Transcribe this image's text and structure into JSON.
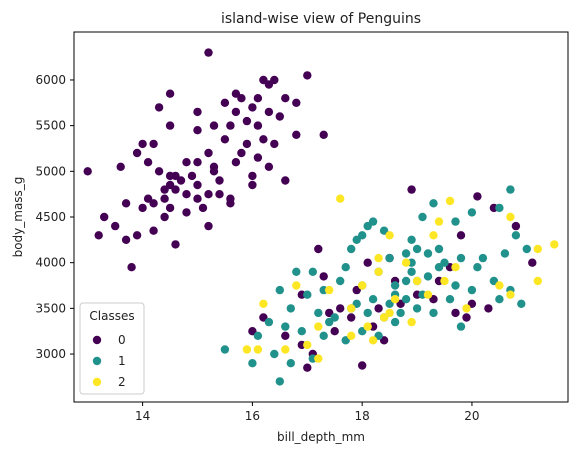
{
  "chart_data": {
    "type": "scatter",
    "title": "island-wise view of Penguins",
    "xlabel": "bill_depth_mm",
    "ylabel": "body_mass_g",
    "xlim": [
      12.75,
      21.75
    ],
    "ylim": [
      2475,
      6525
    ],
    "xticks": [
      14,
      16,
      18,
      20
    ],
    "yticks": [
      3000,
      3500,
      4000,
      4500,
      5000,
      5500,
      6000
    ],
    "grid": false,
    "legend": {
      "title": "Classes",
      "position": "lower-left"
    },
    "series": [
      {
        "name": "0",
        "color": "#440154",
        "points": [
          [
            15.2,
            6300
          ],
          [
            17.0,
            6050
          ],
          [
            16.2,
            6000
          ],
          [
            16.4,
            6000
          ],
          [
            15.7,
            5850
          ],
          [
            14.5,
            5850
          ],
          [
            16.3,
            5950
          ],
          [
            15.8,
            5800
          ],
          [
            16.1,
            5800
          ],
          [
            16.6,
            5800
          ],
          [
            15.5,
            5750
          ],
          [
            16.8,
            5750
          ],
          [
            16.0,
            5700
          ],
          [
            14.3,
            5700
          ],
          [
            16.3,
            5650
          ],
          [
            15.7,
            5650
          ],
          [
            15.0,
            5650
          ],
          [
            16.5,
            5600
          ],
          [
            15.9,
            5550
          ],
          [
            16.1,
            5500
          ],
          [
            15.3,
            5500
          ],
          [
            15.6,
            5500
          ],
          [
            16.8,
            5400
          ],
          [
            17.3,
            5400
          ],
          [
            15.0,
            5450
          ],
          [
            14.5,
            5500
          ],
          [
            16.2,
            5350
          ],
          [
            15.5,
            5350
          ],
          [
            15.9,
            5300
          ],
          [
            14.2,
            5300
          ],
          [
            14.0,
            5300
          ],
          [
            16.4,
            5300
          ],
          [
            15.8,
            5200
          ],
          [
            15.2,
            5200
          ],
          [
            15.0,
            5100
          ],
          [
            14.8,
            5100
          ],
          [
            16.1,
            5150
          ],
          [
            15.7,
            5100
          ],
          [
            16.3,
            5050
          ],
          [
            14.1,
            5100
          ],
          [
            13.9,
            5200
          ],
          [
            15.3,
            5000
          ],
          [
            14.3,
            5000
          ],
          [
            14.5,
            4950
          ],
          [
            14.9,
            4950
          ],
          [
            13.0,
            5000
          ],
          [
            13.6,
            5050
          ],
          [
            15.4,
            4900
          ],
          [
            14.7,
            4900
          ],
          [
            14.5,
            4850
          ],
          [
            15.0,
            4850
          ],
          [
            14.4,
            4800
          ],
          [
            14.6,
            4800
          ],
          [
            14.8,
            4750
          ],
          [
            15.2,
            4750
          ],
          [
            14.4,
            4700
          ],
          [
            15.6,
            4700
          ],
          [
            14.2,
            4650
          ],
          [
            13.7,
            4650
          ],
          [
            14.0,
            4600
          ],
          [
            14.5,
            4600
          ],
          [
            15.1,
            4600
          ],
          [
            14.8,
            4550
          ],
          [
            13.3,
            4500
          ],
          [
            14.4,
            4500
          ],
          [
            15.2,
            4400
          ],
          [
            13.5,
            4400
          ],
          [
            14.2,
            4350
          ],
          [
            13.9,
            4300
          ],
          [
            13.7,
            4250
          ],
          [
            14.6,
            4200
          ],
          [
            13.8,
            3950
          ],
          [
            16.0,
            4850
          ],
          [
            15.6,
            4650
          ],
          [
            15.4,
            4750
          ],
          [
            16.0,
            4950
          ],
          [
            16.6,
            4900
          ],
          [
            14.1,
            4700
          ],
          [
            13.2,
            4300
          ],
          [
            15.0,
            4700
          ],
          [
            15.3,
            5050
          ],
          [
            14.6,
            4950
          ],
          [
            18.9,
            4800
          ],
          [
            20.1,
            4725
          ],
          [
            20.8,
            4400
          ],
          [
            20.4,
            4600
          ],
          [
            19.8,
            4300
          ],
          [
            21.1,
            4000
          ],
          [
            18.5,
            4050
          ],
          [
            17.9,
            3700
          ],
          [
            19.6,
            3950
          ],
          [
            17.2,
            4150
          ],
          [
            18.2,
            3300
          ],
          [
            18.4,
            3150
          ],
          [
            17.1,
            3000
          ],
          [
            17.0,
            2850
          ],
          [
            16.9,
            3100
          ],
          [
            18.0,
            2875
          ],
          [
            16.6,
            3200
          ],
          [
            17.8,
            3400
          ],
          [
            18.7,
            3550
          ],
          [
            19.0,
            3650
          ],
          [
            19.3,
            3600
          ],
          [
            18.3,
            3500
          ],
          [
            17.5,
            3250
          ],
          [
            17.6,
            3500
          ],
          [
            18.6,
            3800
          ],
          [
            19.4,
            3800
          ],
          [
            19.7,
            3450
          ],
          [
            20.0,
            3550
          ],
          [
            20.3,
            3500
          ],
          [
            18.1,
            4000
          ],
          [
            17.3,
            3850
          ],
          [
            16.9,
            3650
          ],
          [
            16.2,
            3400
          ],
          [
            16.0,
            3250
          ],
          [
            17.4,
            3450
          ],
          [
            19.9,
            3400
          ]
        ]
      },
      {
        "name": "1",
        "color": "#21918c",
        "points": [
          [
            20.7,
            4800
          ],
          [
            20.5,
            4600
          ],
          [
            20.0,
            4550
          ],
          [
            19.7,
            4450
          ],
          [
            19.3,
            4650
          ],
          [
            19.1,
            4500
          ],
          [
            18.2,
            4450
          ],
          [
            18.1,
            4400
          ],
          [
            18.4,
            4350
          ],
          [
            18.9,
            4250
          ],
          [
            18.0,
            4300
          ],
          [
            17.9,
            4250
          ],
          [
            17.8,
            4150
          ],
          [
            19.0,
            4150
          ],
          [
            19.2,
            4100
          ],
          [
            18.8,
            4100
          ],
          [
            18.5,
            4050
          ],
          [
            17.7,
            3950
          ],
          [
            18.9,
            4000
          ],
          [
            19.5,
            4000
          ],
          [
            20.1,
            3950
          ],
          [
            20.8,
            4300
          ],
          [
            21.0,
            4150
          ],
          [
            20.6,
            4100
          ],
          [
            20.2,
            4050
          ],
          [
            19.8,
            4050
          ],
          [
            19.4,
            3950
          ],
          [
            18.3,
            3900
          ],
          [
            17.1,
            3900
          ],
          [
            16.8,
            3900
          ],
          [
            17.6,
            3800
          ],
          [
            18.0,
            3750
          ],
          [
            18.6,
            3750
          ],
          [
            19.0,
            3800
          ],
          [
            19.7,
            3750
          ],
          [
            20.0,
            3700
          ],
          [
            20.4,
            3800
          ],
          [
            20.7,
            3700
          ],
          [
            20.9,
            3550
          ],
          [
            20.5,
            3600
          ],
          [
            19.6,
            3600
          ],
          [
            19.1,
            3650
          ],
          [
            18.8,
            3600
          ],
          [
            18.5,
            3550
          ],
          [
            18.2,
            3600
          ],
          [
            17.9,
            3550
          ],
          [
            17.3,
            3700
          ],
          [
            17.0,
            3650
          ],
          [
            16.5,
            3700
          ],
          [
            16.7,
            3500
          ],
          [
            17.2,
            3450
          ],
          [
            17.5,
            3400
          ],
          [
            17.8,
            3500
          ],
          [
            18.1,
            3450
          ],
          [
            18.4,
            3400
          ],
          [
            18.7,
            3450
          ],
          [
            19.0,
            3500
          ],
          [
            19.3,
            3450
          ],
          [
            19.8,
            3300
          ],
          [
            16.3,
            3350
          ],
          [
            16.6,
            3300
          ],
          [
            16.9,
            3250
          ],
          [
            17.3,
            3200
          ],
          [
            17.7,
            3150
          ],
          [
            18.0,
            3250
          ],
          [
            18.3,
            3200
          ],
          [
            18.6,
            3350
          ],
          [
            16.1,
            3200
          ],
          [
            16.4,
            3000
          ],
          [
            16.7,
            2900
          ],
          [
            16.5,
            2700
          ],
          [
            15.5,
            3050
          ],
          [
            16.0,
            2900
          ],
          [
            17.1,
            2950
          ],
          [
            17.4,
            3350
          ],
          [
            18.9,
            3900
          ],
          [
            19.4,
            4150
          ],
          [
            18.6,
            3650
          ],
          [
            18.8,
            3800
          ],
          [
            19.2,
            3850
          ]
        ]
      },
      {
        "name": "2",
        "color": "#fde725",
        "points": [
          [
            17.6,
            4700
          ],
          [
            19.6,
            4675
          ],
          [
            20.7,
            4500
          ],
          [
            19.4,
            4450
          ],
          [
            21.5,
            4200
          ],
          [
            21.2,
            4150
          ],
          [
            19.3,
            4300
          ],
          [
            18.5,
            4300
          ],
          [
            18.8,
            4000
          ],
          [
            18.3,
            3900
          ],
          [
            19.0,
            3800
          ],
          [
            18.0,
            3750
          ],
          [
            19.5,
            3800
          ],
          [
            20.5,
            3750
          ],
          [
            21.2,
            3800
          ],
          [
            20.7,
            3650
          ],
          [
            19.2,
            3650
          ],
          [
            18.6,
            3600
          ],
          [
            17.4,
            3700
          ],
          [
            16.8,
            3750
          ],
          [
            16.2,
            3550
          ],
          [
            17.8,
            3500
          ],
          [
            18.5,
            3450
          ],
          [
            19.9,
            3500
          ],
          [
            18.9,
            3350
          ],
          [
            18.1,
            3300
          ],
          [
            17.2,
            3300
          ],
          [
            17.8,
            3200
          ],
          [
            17.0,
            3100
          ],
          [
            16.6,
            3050
          ],
          [
            16.1,
            3050
          ],
          [
            17.2,
            2950
          ],
          [
            15.9,
            3050
          ],
          [
            18.2,
            3150
          ],
          [
            18.4,
            3400
          ],
          [
            19.7,
            3950
          ],
          [
            18.3,
            4050
          ]
        ]
      }
    ]
  }
}
